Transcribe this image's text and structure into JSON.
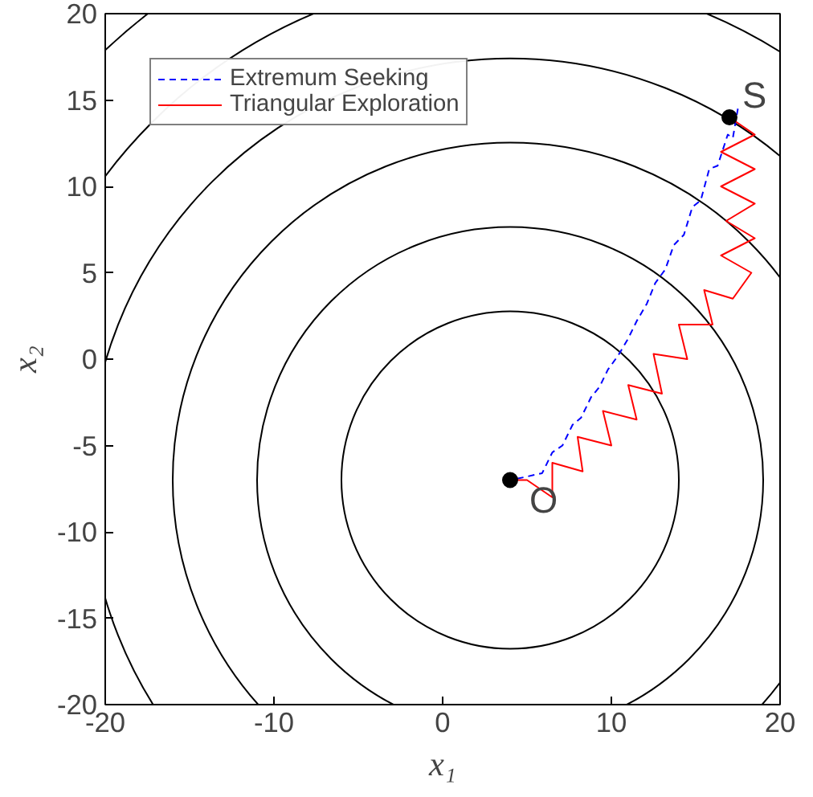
{
  "chart_data": {
    "type": "line",
    "xlabel": "x₁",
    "ylabel": "x₂",
    "xlim": [
      -20,
      20
    ],
    "ylim": [
      -20,
      20
    ],
    "xticks": [
      -20,
      -10,
      0,
      10,
      20
    ],
    "yticks": [
      -20,
      -15,
      -10,
      -5,
      0,
      5,
      10,
      15,
      20
    ],
    "grid": false,
    "legend": "top left",
    "marker": "none",
    "series": [
      {
        "name": "Extremum Seeking",
        "color": "#0000ff",
        "line_style": "dashed",
        "x": [
          17.5,
          17.2,
          16.9,
          16.3,
          15.8,
          15.3,
          14.8,
          14.3,
          13.7,
          13.2,
          12.6,
          12.1,
          11.5,
          11,
          10.4,
          9.8,
          9.3,
          8.8,
          8.2,
          7.7,
          7.1,
          6.5,
          5.9,
          5,
          4
        ],
        "values": [
          14.5,
          12.8,
          13,
          11.2,
          11,
          9.2,
          8.8,
          7.2,
          6.6,
          5.2,
          4.4,
          3.2,
          2.2,
          1.2,
          0.2,
          -0.6,
          -1.6,
          -2.2,
          -3.4,
          -3.8,
          -5,
          -5.4,
          -6.6,
          -6.8,
          -7
        ]
      },
      {
        "name": "Triangular Exploration",
        "color": "#ff0000",
        "x": [
          17,
          18.5,
          16.5,
          18.5,
          16.5,
          18.5,
          16.8,
          18.5,
          16.5,
          18.3,
          17.2,
          15.5,
          16,
          14,
          14.5,
          12.5,
          13,
          11,
          11.5,
          9.5,
          10,
          8,
          8.3,
          6.5,
          6.5,
          5,
          4
        ],
        "values": [
          14,
          13,
          12,
          11,
          10,
          9,
          8,
          7,
          6,
          5,
          3.5,
          4,
          2,
          2,
          0,
          0.3,
          -2,
          -1.5,
          -3.5,
          -3,
          -5,
          -4.5,
          -6.5,
          -6,
          -8,
          -7,
          -7
        ]
      },
      {
        "type": "scatter",
        "marker": "circle",
        "color": "#000000",
        "x": [
          17,
          4
        ],
        "values": [
          14,
          -7
        ]
      }
    ],
    "annotations": [
      {
        "text": "S",
        "x": 17,
        "y": 14
      },
      {
        "text": "O",
        "x": 4,
        "y": -7
      }
    ]
  }
}
